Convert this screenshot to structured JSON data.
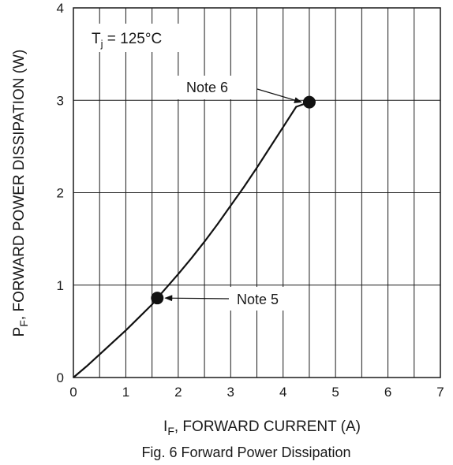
{
  "chart_data": {
    "type": "line",
    "title": "",
    "caption": "Fig. 6  Forward Power Dissipation",
    "xlabel": {
      "main": "I",
      "sub": "F",
      "rest": ", FORWARD CURRENT (A)"
    },
    "ylabel": {
      "main": "P",
      "sub": "F",
      "rest": ", FORWARD POWER DISSIPATION (W)"
    },
    "xlim": [
      0,
      7
    ],
    "ylim": [
      0,
      4
    ],
    "x_ticks": [
      0,
      1,
      2,
      3,
      4,
      5,
      6,
      7
    ],
    "y_ticks": [
      0,
      1,
      2,
      3,
      4
    ],
    "grid": true,
    "condition": {
      "main": "T",
      "sub": "j",
      "rest": " = 125°C"
    },
    "series": [
      {
        "x": [
          0,
          0.25,
          0.5,
          0.75,
          1.0,
          1.25,
          1.5,
          1.6,
          2.0,
          2.25,
          2.5,
          2.75,
          3.0,
          3.25,
          3.5,
          3.75,
          4.0,
          4.25,
          4.5
        ],
        "y": [
          0,
          0.12,
          0.25,
          0.38,
          0.51,
          0.65,
          0.79,
          0.86,
          1.12,
          1.29,
          1.47,
          1.66,
          1.86,
          2.06,
          2.27,
          2.49,
          2.71,
          2.93,
          2.98
        ]
      }
    ],
    "markers": [
      {
        "x": 1.6,
        "y": 0.86,
        "label": "Note 5"
      },
      {
        "x": 4.5,
        "y": 2.98,
        "label": "Note 6"
      }
    ]
  }
}
